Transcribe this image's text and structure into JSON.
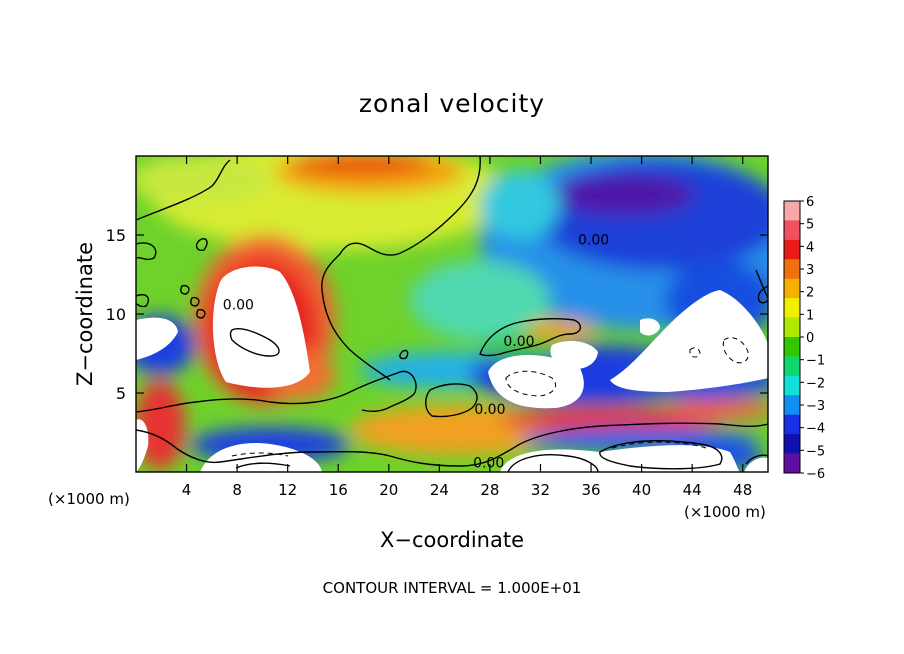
{
  "chart_data": {
    "type": "heatmap",
    "title": "zonal velocity",
    "xlabel": "X−coordinate",
    "ylabel": "Z−coordinate",
    "x_unit_left": "(×1000 m)",
    "x_unit_right": "(×1000 m)",
    "xlim": [
      0,
      50
    ],
    "ylim": [
      0,
      20
    ],
    "x_ticks": [
      4,
      8,
      12,
      16,
      20,
      24,
      28,
      32,
      36,
      40,
      44,
      48
    ],
    "y_ticks": [
      5,
      10,
      15
    ],
    "colorbar": {
      "range": [
        -6,
        6
      ],
      "ticks": [
        "6",
        "5",
        "4",
        "3",
        "2",
        "1",
        "0",
        "−1",
        "−2",
        "−3",
        "−4",
        "−5",
        "−6"
      ],
      "colors": [
        "#f7a8a8",
        "#f05060",
        "#e81a1a",
        "#f07010",
        "#f8b000",
        "#f0f000",
        "#b0e800",
        "#30c800",
        "#10d870",
        "#10e0d8",
        "#1090f0",
        "#1830e8",
        "#1010b0",
        "#6010a0"
      ]
    },
    "contour_labels": [
      {
        "text": "0.00",
        "x": 36.2,
        "y": 14.7
      },
      {
        "text": "0.00",
        "x": 8.1,
        "y": 10.6
      },
      {
        "text": "0.00",
        "x": 30.3,
        "y": 8.3
      },
      {
        "text": "0.00",
        "x": 28.0,
        "y": 4.0
      },
      {
        "text": "0.00",
        "x": 27.9,
        "y": 0.6
      }
    ],
    "footer": "CONTOUR INTERVAL = 1.000E+01"
  }
}
